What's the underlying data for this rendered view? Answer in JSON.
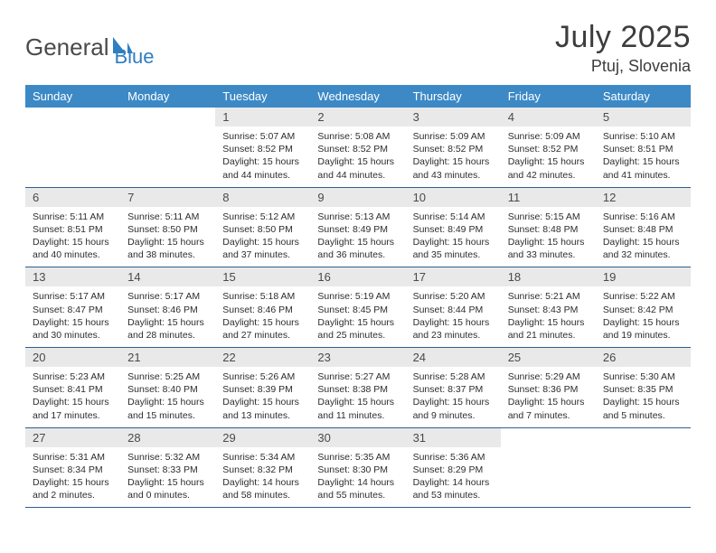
{
  "logo": {
    "text1": "General",
    "text2": "Blue"
  },
  "title": "July 2025",
  "location": "Ptuj, Slovenia",
  "weekdays": [
    "Sunday",
    "Monday",
    "Tuesday",
    "Wednesday",
    "Thursday",
    "Friday",
    "Saturday"
  ],
  "colors": {
    "header_bg": "#3c89c6",
    "header_text": "#ffffff",
    "daynum_bg": "#e9e9e9",
    "cell_border": "#2f5f8f",
    "logo_blue": "#2f7ec2",
    "text": "#303030"
  },
  "grid": [
    [
      {
        "n": "",
        "sr": "",
        "ss": "",
        "dl": ""
      },
      {
        "n": "",
        "sr": "",
        "ss": "",
        "dl": ""
      },
      {
        "n": "1",
        "sr": "5:07 AM",
        "ss": "8:52 PM",
        "dl": "15 hours and 44 minutes."
      },
      {
        "n": "2",
        "sr": "5:08 AM",
        "ss": "8:52 PM",
        "dl": "15 hours and 44 minutes."
      },
      {
        "n": "3",
        "sr": "5:09 AM",
        "ss": "8:52 PM",
        "dl": "15 hours and 43 minutes."
      },
      {
        "n": "4",
        "sr": "5:09 AM",
        "ss": "8:52 PM",
        "dl": "15 hours and 42 minutes."
      },
      {
        "n": "5",
        "sr": "5:10 AM",
        "ss": "8:51 PM",
        "dl": "15 hours and 41 minutes."
      }
    ],
    [
      {
        "n": "6",
        "sr": "5:11 AM",
        "ss": "8:51 PM",
        "dl": "15 hours and 40 minutes."
      },
      {
        "n": "7",
        "sr": "5:11 AM",
        "ss": "8:50 PM",
        "dl": "15 hours and 38 minutes."
      },
      {
        "n": "8",
        "sr": "5:12 AM",
        "ss": "8:50 PM",
        "dl": "15 hours and 37 minutes."
      },
      {
        "n": "9",
        "sr": "5:13 AM",
        "ss": "8:49 PM",
        "dl": "15 hours and 36 minutes."
      },
      {
        "n": "10",
        "sr": "5:14 AM",
        "ss": "8:49 PM",
        "dl": "15 hours and 35 minutes."
      },
      {
        "n": "11",
        "sr": "5:15 AM",
        "ss": "8:48 PM",
        "dl": "15 hours and 33 minutes."
      },
      {
        "n": "12",
        "sr": "5:16 AM",
        "ss": "8:48 PM",
        "dl": "15 hours and 32 minutes."
      }
    ],
    [
      {
        "n": "13",
        "sr": "5:17 AM",
        "ss": "8:47 PM",
        "dl": "15 hours and 30 minutes."
      },
      {
        "n": "14",
        "sr": "5:17 AM",
        "ss": "8:46 PM",
        "dl": "15 hours and 28 minutes."
      },
      {
        "n": "15",
        "sr": "5:18 AM",
        "ss": "8:46 PM",
        "dl": "15 hours and 27 minutes."
      },
      {
        "n": "16",
        "sr": "5:19 AM",
        "ss": "8:45 PM",
        "dl": "15 hours and 25 minutes."
      },
      {
        "n": "17",
        "sr": "5:20 AM",
        "ss": "8:44 PM",
        "dl": "15 hours and 23 minutes."
      },
      {
        "n": "18",
        "sr": "5:21 AM",
        "ss": "8:43 PM",
        "dl": "15 hours and 21 minutes."
      },
      {
        "n": "19",
        "sr": "5:22 AM",
        "ss": "8:42 PM",
        "dl": "15 hours and 19 minutes."
      }
    ],
    [
      {
        "n": "20",
        "sr": "5:23 AM",
        "ss": "8:41 PM",
        "dl": "15 hours and 17 minutes."
      },
      {
        "n": "21",
        "sr": "5:25 AM",
        "ss": "8:40 PM",
        "dl": "15 hours and 15 minutes."
      },
      {
        "n": "22",
        "sr": "5:26 AM",
        "ss": "8:39 PM",
        "dl": "15 hours and 13 minutes."
      },
      {
        "n": "23",
        "sr": "5:27 AM",
        "ss": "8:38 PM",
        "dl": "15 hours and 11 minutes."
      },
      {
        "n": "24",
        "sr": "5:28 AM",
        "ss": "8:37 PM",
        "dl": "15 hours and 9 minutes."
      },
      {
        "n": "25",
        "sr": "5:29 AM",
        "ss": "8:36 PM",
        "dl": "15 hours and 7 minutes."
      },
      {
        "n": "26",
        "sr": "5:30 AM",
        "ss": "8:35 PM",
        "dl": "15 hours and 5 minutes."
      }
    ],
    [
      {
        "n": "27",
        "sr": "5:31 AM",
        "ss": "8:34 PM",
        "dl": "15 hours and 2 minutes."
      },
      {
        "n": "28",
        "sr": "5:32 AM",
        "ss": "8:33 PM",
        "dl": "15 hours and 0 minutes."
      },
      {
        "n": "29",
        "sr": "5:34 AM",
        "ss": "8:32 PM",
        "dl": "14 hours and 58 minutes."
      },
      {
        "n": "30",
        "sr": "5:35 AM",
        "ss": "8:30 PM",
        "dl": "14 hours and 55 minutes."
      },
      {
        "n": "31",
        "sr": "5:36 AM",
        "ss": "8:29 PM",
        "dl": "14 hours and 53 minutes."
      },
      {
        "n": "",
        "sr": "",
        "ss": "",
        "dl": ""
      },
      {
        "n": "",
        "sr": "",
        "ss": "",
        "dl": ""
      }
    ]
  ],
  "labels": {
    "sunrise": "Sunrise: ",
    "sunset": "Sunset: ",
    "daylight": "Daylight: "
  }
}
